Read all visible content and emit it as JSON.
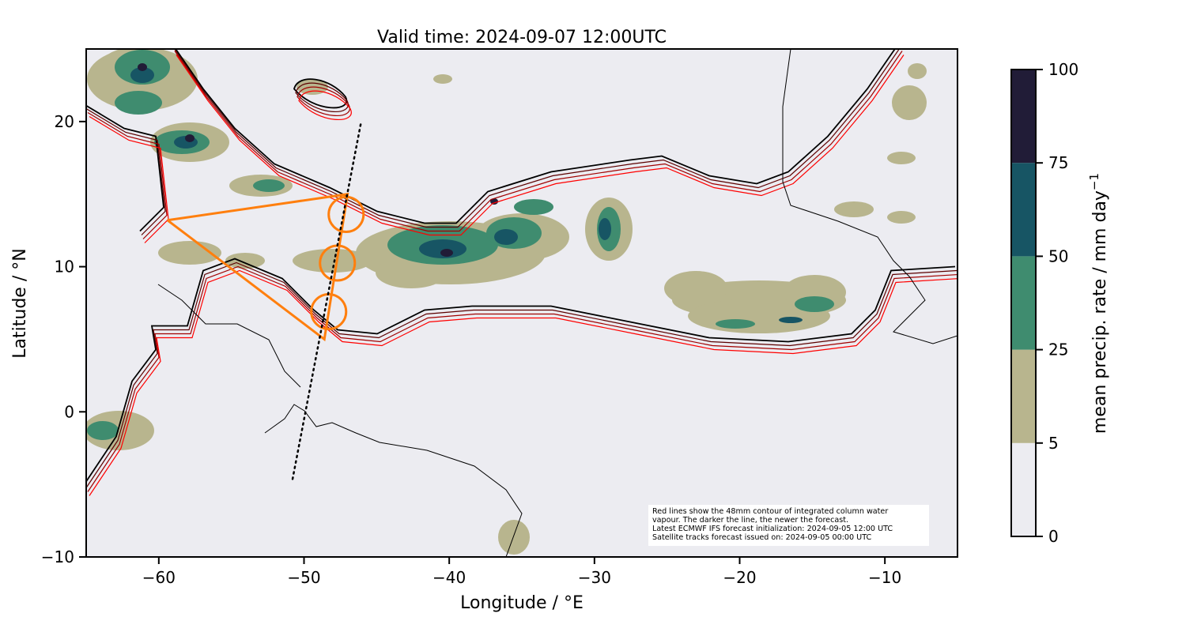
{
  "chart_data": {
    "type": "map",
    "title": "Valid time: 2024-09-07 12:00UTC",
    "xlabel": "Longitude / °E",
    "ylabel": "Latitude / °N",
    "xlim": [
      -65,
      -5
    ],
    "ylim": [
      -10,
      25
    ],
    "xticks": [
      "−60",
      "−50",
      "−40",
      "−30",
      "−20",
      "−10"
    ],
    "xtick_values": [
      -60,
      -50,
      -40,
      -30,
      -20,
      -10
    ],
    "yticks": [
      "20",
      "10",
      "0",
      "−10"
    ],
    "ytick_values": [
      20,
      10,
      0,
      -10
    ],
    "colorbar": {
      "label": "mean precip. rate / mm day",
      "label_superscript": "−1",
      "levels": [
        0,
        5,
        25,
        50,
        75,
        100
      ],
      "tick_labels": [
        "0",
        "5",
        "25",
        "50",
        "75",
        "100"
      ],
      "colors": [
        "#ececf1",
        "#b8b58e",
        "#3f8c6f",
        "#175564",
        "#211c37"
      ]
    },
    "contour_colors": [
      "#000000",
      "#5c0000",
      "#a00000",
      "#ff0000"
    ],
    "flight_track": {
      "color": "#ff7f0e",
      "points": [
        [
          -59.4,
          13.2
        ],
        [
          -47.0,
          15.0
        ],
        [
          -48.6,
          5.0
        ],
        [
          -59.4,
          13.2
        ]
      ],
      "circles": [
        [
          -47.1,
          13.6
        ],
        [
          -47.7,
          10.25
        ],
        [
          -48.3,
          6.9
        ]
      ],
      "circle_radius_deg": 1.2
    },
    "satellite_track": {
      "points": [
        [
          -46.1,
          19.8
        ],
        [
          -50.8,
          -4.7
        ]
      ],
      "style": "dotted"
    },
    "annotation": [
      "Red lines show the 48mm contour of integrated column water",
      "vapour. The darker the line, the newer the forecast.",
      "Latest ECMWF IFS forecast initialization: 2024-09-05 12:00 UTC",
      "Satellite tracks forecast issued on: 2024-09-05 00:00 UTC"
    ]
  }
}
